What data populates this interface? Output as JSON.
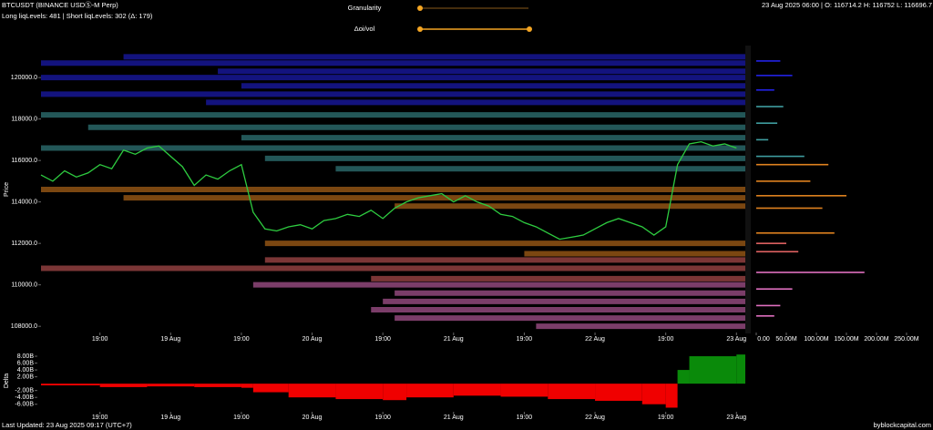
{
  "header": {
    "symbol": "BTCUSDT (BINANCE USDⓈ-M Perp)",
    "levels_info": "Long liqLevels: 481 | Short liqLevels: 302 (Δ: 179)",
    "ohlc": "23 Aug 2025 06:00 | O: 116714.2 H: 116752 L: 116696.7 C: 116751.9"
  },
  "controls": {
    "granularity": "Granularity",
    "oi_vol": "Δoi/vol"
  },
  "footer": {
    "updated": "Last Updated: 23 Aug 2025 09:17 (UTC+7)",
    "site": "byblockcapital.com"
  },
  "chart_data": [
    {
      "type": "line",
      "ylabel": "Price",
      "color": "#2ecc40",
      "x": [
        2,
        4,
        6,
        8,
        10,
        12,
        14,
        16,
        18,
        20,
        22,
        24,
        26,
        28,
        30,
        32,
        34,
        36,
        38,
        40,
        42,
        44,
        46,
        48,
        50,
        52,
        54,
        56,
        58,
        60,
        62,
        64,
        66,
        68,
        70,
        72,
        74,
        76,
        78,
        80,
        82,
        84,
        86,
        88,
        90,
        92,
        94,
        96,
        98,
        100,
        102,
        104,
        106,
        108,
        110,
        112,
        114,
        116,
        118,
        120
      ],
      "values": [
        115300,
        115000,
        115500,
        115200,
        115400,
        115800,
        115600,
        116500,
        116300,
        116600,
        116700,
        116200,
        115700,
        114800,
        115300,
        115100,
        115500,
        115800,
        113500,
        112700,
        112600,
        112800,
        112900,
        112700,
        113100,
        113200,
        113400,
        113300,
        113600,
        113200,
        113700,
        114000,
        114200,
        114300,
        114400,
        114000,
        114300,
        114000,
        113800,
        113400,
        113300,
        113000,
        112800,
        112500,
        112200,
        112300,
        112400,
        112700,
        113000,
        113200,
        113000,
        112800,
        112400,
        112800,
        115800,
        116800,
        116900,
        116700,
        116800,
        116600
      ],
      "levels": [
        {
          "color": "#2323e6",
          "prices": [
            121000,
            120700,
            120300,
            120000,
            119600,
            119200,
            118800
          ],
          "starts": [
            16,
            2,
            32,
            2,
            36,
            2,
            30
          ]
        },
        {
          "color": "#3f9ea0",
          "prices": [
            118200,
            117600,
            117100,
            116600,
            116100,
            115600
          ],
          "starts": [
            2,
            10,
            36,
            2,
            40,
            52
          ]
        },
        {
          "color": "#e0821f",
          "prices": [
            114600,
            114200,
            113800,
            112000,
            111500
          ],
          "starts": [
            2,
            16,
            62,
            40,
            84
          ]
        },
        {
          "color": "#e06262",
          "prices": [
            111200,
            110800,
            110300
          ],
          "starts": [
            40,
            2,
            58
          ]
        },
        {
          "color": "#e070c0",
          "prices": [
            110000,
            109600,
            109200,
            108800,
            108400,
            108000
          ],
          "starts": [
            38,
            62,
            60,
            58,
            62,
            86
          ]
        }
      ],
      "xlim": [
        2,
        121.5
      ],
      "xticks": [
        {
          "value": 12,
          "label": "19:00"
        },
        {
          "value": 24,
          "label": "19 Aug"
        },
        {
          "value": 36,
          "label": "19:00"
        },
        {
          "value": 48,
          "label": "20 Aug"
        },
        {
          "value": 60,
          "label": "19:00"
        },
        {
          "value": 72,
          "label": "21 Aug"
        },
        {
          "value": 84,
          "label": "19:00"
        },
        {
          "value": 96,
          "label": "22 Aug"
        },
        {
          "value": 108,
          "label": "19:00"
        },
        {
          "value": 120,
          "label": "23 Aug"
        }
      ],
      "ylim": [
        107700,
        121500
      ],
      "yticks": [
        {
          "value": 108000,
          "label": "108000.0"
        },
        {
          "value": 110000,
          "label": "110000.0"
        },
        {
          "value": 112000,
          "label": "112000.0"
        },
        {
          "value": 114000,
          "label": "114000.0"
        },
        {
          "value": 116000,
          "label": "116000.0"
        },
        {
          "value": 118000,
          "label": "118000.0"
        },
        {
          "value": 120000,
          "label": "120000.0"
        }
      ]
    },
    {
      "type": "hbar",
      "prices": [
        120800,
        120100,
        119400,
        118600,
        117800,
        117000,
        116200,
        115800,
        115000,
        114300,
        113700,
        112500,
        112000,
        111600,
        110600,
        109800,
        109000,
        108500
      ],
      "values": [
        40000000,
        60000000,
        30000000,
        45000000,
        35000000,
        20000000,
        80000000,
        120000000,
        90000000,
        150000000,
        110000000,
        130000000,
        50000000,
        70000000,
        180000000,
        60000000,
        40000000,
        30000000
      ],
      "colors": [
        "#2323e6",
        "#2323e6",
        "#2323e6",
        "#3f9ea0",
        "#3f9ea0",
        "#3f9ea0",
        "#3f9ea0",
        "#e0821f",
        "#e0821f",
        "#e0821f",
        "#e0821f",
        "#e0821f",
        "#e06262",
        "#e06262",
        "#e070c0",
        "#e070c0",
        "#e070c0",
        "#e070c0"
      ],
      "xlim": [
        0,
        294000000
      ],
      "xticks": [
        {
          "value": 0,
          "label": "0.00"
        },
        {
          "value": 50000000,
          "label": "50.00M"
        },
        {
          "value": 100000000,
          "label": "100.00M"
        },
        {
          "value": 150000000,
          "label": "150.00M"
        },
        {
          "value": 200000000,
          "label": "200.00M"
        },
        {
          "value": 250000000,
          "label": "250.00M"
        }
      ]
    },
    {
      "type": "area",
      "ylabel": "Delta",
      "positive_color": "#0a8a0a",
      "negative_color": "#f00000",
      "x": [
        2,
        12,
        20,
        28,
        36,
        38,
        44,
        52,
        60,
        64,
        72,
        80,
        88,
        96,
        104,
        108,
        110,
        112,
        120
      ],
      "values": [
        -500000000,
        -1000000000,
        -800000000,
        -1000000000,
        -1200000000,
        -2500000000,
        -4000000000,
        -4500000000,
        -4800000000,
        -4000000000,
        -3500000000,
        -3800000000,
        -4500000000,
        -5000000000,
        -6000000000,
        -7000000000,
        4000000000,
        8000000000,
        8500000000
      ],
      "xlim": [
        2,
        121.5
      ],
      "xticks": [
        {
          "value": 12,
          "label": "19:00"
        },
        {
          "value": 24,
          "label": "19 Aug"
        },
        {
          "value": 36,
          "label": "19:00"
        },
        {
          "value": 48,
          "label": "20 Aug"
        },
        {
          "value": 60,
          "label": "19:00"
        },
        {
          "value": 72,
          "label": "21 Aug"
        },
        {
          "value": 84,
          "label": "19:00"
        },
        {
          "value": 96,
          "label": "22 Aug"
        },
        {
          "value": 108,
          "label": "19:00"
        },
        {
          "value": 120,
          "label": "23 Aug"
        }
      ],
      "ylim": [
        -8200000000,
        9600000000
      ],
      "yticks": [
        {
          "value": -6000000000,
          "label": "-6.00B"
        },
        {
          "value": -4000000000,
          "label": "-4.00B"
        },
        {
          "value": -2000000000,
          "label": "-2.00B"
        },
        {
          "value": 2000000000,
          "label": "2.00B"
        },
        {
          "value": 4000000000,
          "label": "4.00B"
        },
        {
          "value": 6000000000,
          "label": "6.00B"
        },
        {
          "value": 8000000000,
          "label": "8.00B"
        }
      ]
    }
  ]
}
